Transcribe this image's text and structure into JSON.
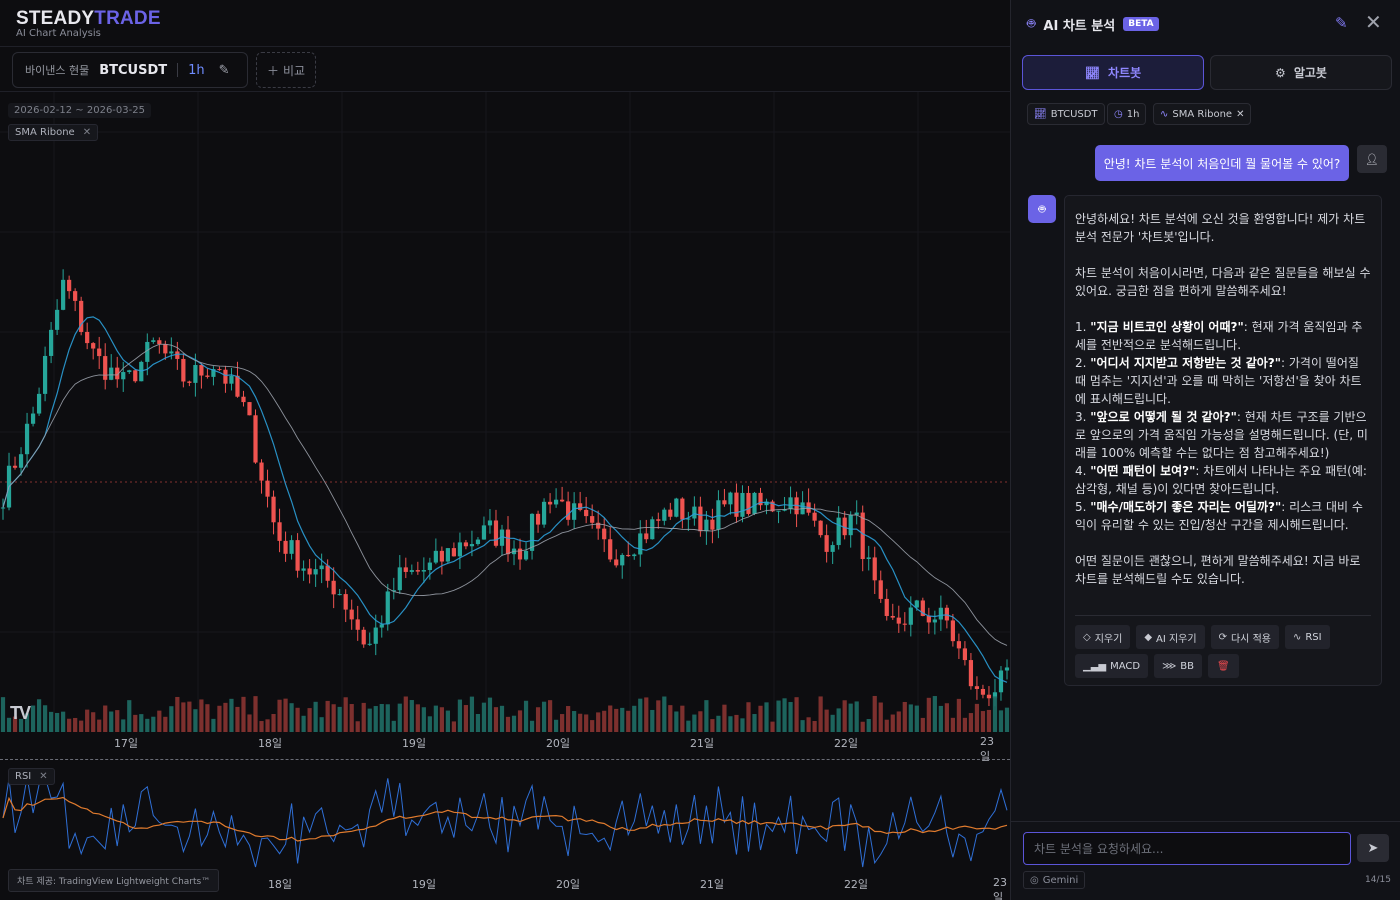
{
  "brand": {
    "part1": "STEADY",
    "part2": "TRADE",
    "subtitle": "AI Chart Analysis"
  },
  "toolbar": {
    "exchange": "바이낸스 현물",
    "symbol": "BTCUSDT",
    "timeframe": "1h",
    "compare_label": "비교"
  },
  "chart": {
    "date_range": "2026-02-12 ~ 2026-03-25",
    "indicator_tag": "SMA Ribone",
    "rsi_tag": "RSI",
    "x_labels": [
      "17일",
      "18일",
      "19일",
      "20일",
      "21일",
      "22일",
      "23일"
    ],
    "attribution": "차트 제공: TradingView Lightweight Charts™"
  },
  "chart_data": {
    "type": "candlestick",
    "symbol": "BTCUSDT",
    "timeframe": "1h",
    "date_range": "2026-02-12 ~ 2026-03-25",
    "x_labels": [
      "17일",
      "18일",
      "19일",
      "20일",
      "21일",
      "22일",
      "23일"
    ],
    "price_path": [
      0.38,
      0.55,
      0.83,
      0.67,
      0.61,
      0.7,
      0.62,
      0.66,
      0.55,
      0.29,
      0.22,
      0.18,
      0.05,
      0.2,
      0.22,
      0.27,
      0.3,
      0.26,
      0.38,
      0.32,
      0.25,
      0.29,
      0.35,
      0.32,
      0.36,
      0.35,
      0.37,
      0.28,
      0.33,
      0.09,
      0.13,
      0.11,
      -0.05,
      -0.02
    ],
    "indicators": [
      "SMA Ribone",
      "RSI"
    ],
    "colors": {
      "up": "#26a69a",
      "down": "#ef5350",
      "sma_fast": "#2b9fd8",
      "sma_slow": "#9aa0aa",
      "rsi": "#2f6fd6",
      "rsi_ma": "#e07b2e"
    }
  },
  "panel": {
    "title": "AI 차트 분석",
    "badge": "BETA",
    "tabs": {
      "chartbot": "차트봇",
      "algobot": "알고봇"
    },
    "context": {
      "symbol": "BTCUSDT",
      "timeframe": "1h",
      "indicator": "SMA Ribone"
    },
    "user_message": "안녕! 차트 분석이 처음인데 뭘 물어볼 수 있어?",
    "bot": {
      "intro": "안녕하세요! 차트 분석에 오신 것을 환영합니다! 제가 차트 분석 전문가 '차트봇'입니다.",
      "para2": "차트 분석이 처음이시라면, 다음과 같은 질문들을 해보실 수 있어요. 궁금한 점을 편하게 말씀해주세요!",
      "items": [
        {
          "num": "1. ",
          "q": "\"지금 비트코인 상황이 어때?\"",
          "desc": ": 현재 가격 움직임과 추세를 전반적으로 분석해드립니다."
        },
        {
          "num": "2. ",
          "q": "\"어디서 지지받고 저항받는 것 같아?\"",
          "desc": ": 가격이 떨어질 때 멈추는 '지지선'과 오를 때 막히는 '저항선'을 찾아 차트에 표시해드립니다."
        },
        {
          "num": "3. ",
          "q": "\"앞으로 어떻게 될 것 같아?\"",
          "desc": ": 현재 차트 구조를 기반으로 앞으로의 가격 움직임 가능성을 설명해드립니다. (단, 미래를 100% 예측할 수는 없다는 점 참고해주세요!)"
        },
        {
          "num": "4. ",
          "q": "\"어떤 패턴이 보여?\"",
          "desc": ": 차트에서 나타나는 주요 패턴(예: 삼각형, 채널 등)이 있다면 찾아드립니다."
        },
        {
          "num": "5. ",
          "q": "\"매수/매도하기 좋은 자리는 어딜까?\"",
          "desc": ": 리스크 대비 수익이 유리할 수 있는 진입/청산 구간을 제시해드립니다."
        }
      ],
      "outro": "어떤 질문이든 괜찮으니, 편하게 말씀해주세요! 지금 바로 차트를 분석해드릴 수도 있습니다."
    },
    "actions": {
      "clear": "지우기",
      "ai_clear": "AI 지우기",
      "reapply": "다시 적용",
      "rsi": "RSI",
      "macd": "MACD",
      "bb": "BB"
    },
    "input_placeholder": "차트 분석을 요청하세요...",
    "model": "Gemini",
    "counter": "14/15"
  }
}
